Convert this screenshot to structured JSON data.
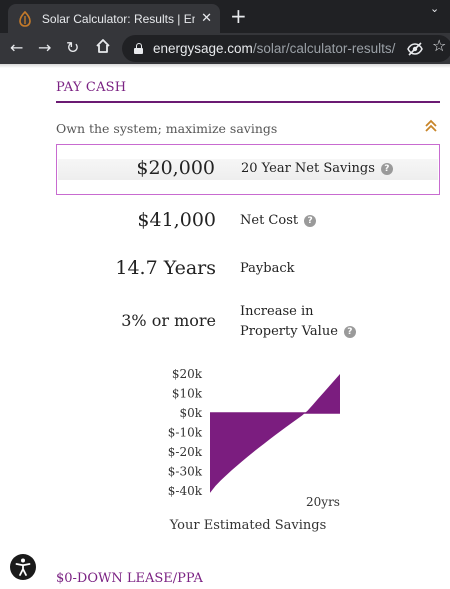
{
  "browser": {
    "tab_title": "Solar Calculator: Results | EnergySage",
    "tab_close": "✕",
    "new_tab": "+",
    "url_host": "energysage.com",
    "url_path": "/solar/calculator-results/"
  },
  "page": {
    "section_title": "PAY CASH",
    "subhead": "Own the system; maximize savings",
    "rows": [
      {
        "value": "$20,000",
        "label": "20 Year Net Savings",
        "help": "?"
      },
      {
        "value": "$41,000",
        "label": "Net Cost",
        "help": "?"
      },
      {
        "value": "14.7 Years",
        "label": "Payback"
      },
      {
        "value": "3% or more",
        "label_line1": "Increase in",
        "label_line2": "Property Value",
        "help": "?"
      }
    ],
    "next_section": "$0-DOWN LEASE/PPA"
  },
  "chart_data": {
    "type": "area",
    "title": "Your Estimated Savings",
    "y_ticks": [
      "$20k",
      "$10k",
      "$0k",
      "$-10k",
      "$-20k",
      "$-30k",
      "$-40k"
    ],
    "x_tick_label": "20yrs",
    "ylim": [
      -41000,
      20000
    ],
    "x": [
      0,
      14.7,
      20
    ],
    "values": [
      -41000,
      0,
      20000
    ],
    "fill_color": "#7b1d7f"
  }
}
